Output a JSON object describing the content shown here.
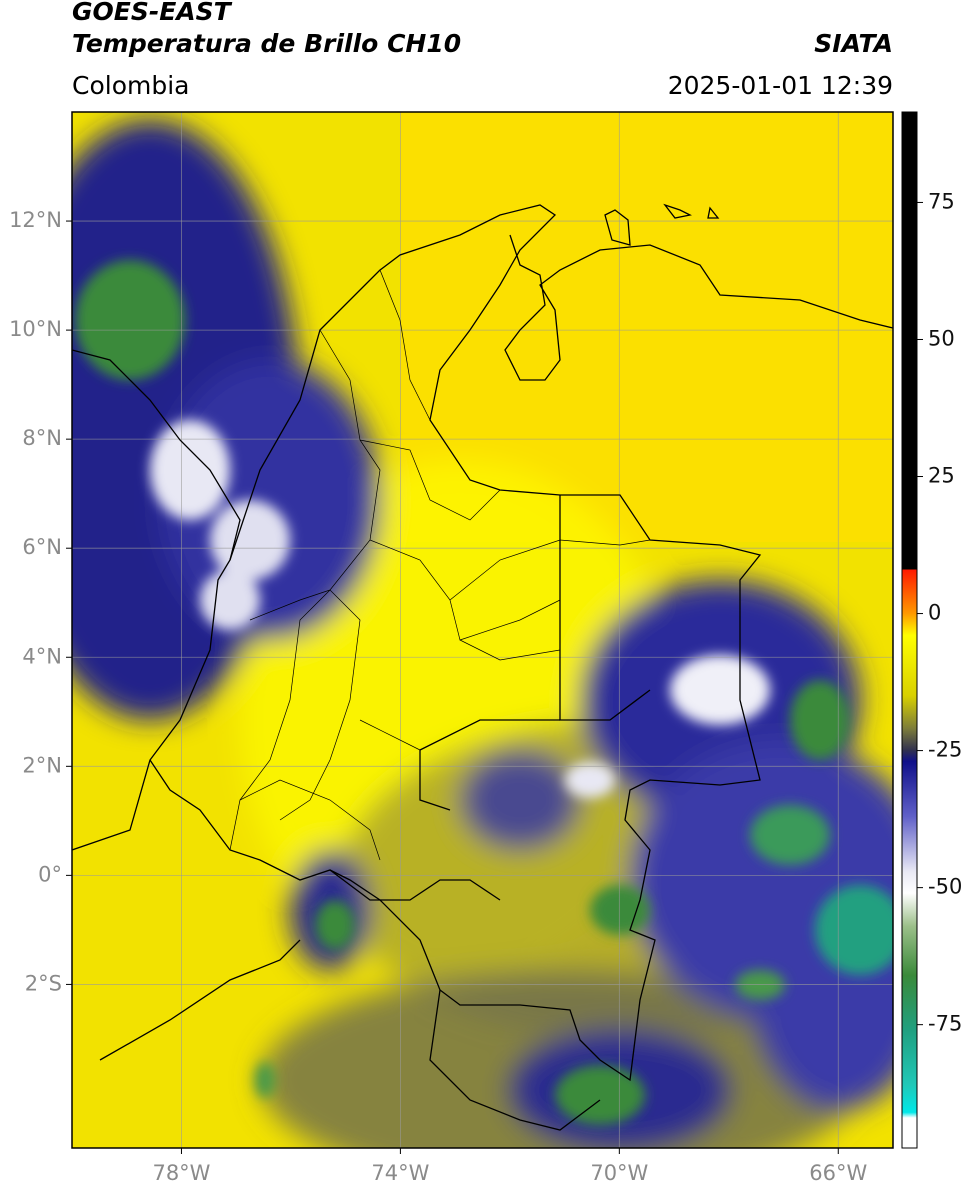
{
  "header": {
    "satellite": "GOES-EAST",
    "product": "Temperatura de Brillo CH10",
    "region": "Colombia",
    "source": "SIATA",
    "datetime": "2025-01-01 12:39"
  },
  "map": {
    "xlim": [
      -80,
      -65
    ],
    "ylim": [
      -5,
      14
    ],
    "xticks": [
      {
        "value": -78,
        "label": "78°W"
      },
      {
        "value": -74,
        "label": "74°W"
      },
      {
        "value": -70,
        "label": "70°W"
      },
      {
        "value": -66,
        "label": "66°W"
      }
    ],
    "yticks": [
      {
        "value": 12,
        "label": "12°N"
      },
      {
        "value": 10,
        "label": "10°N"
      },
      {
        "value": 8,
        "label": "8°N"
      },
      {
        "value": 6,
        "label": "6°N"
      },
      {
        "value": 4,
        "label": "4°N"
      },
      {
        "value": 2,
        "label": "2°N"
      },
      {
        "value": 0,
        "label": "0°"
      },
      {
        "value": -2,
        "label": "2°S"
      }
    ],
    "grid": true
  },
  "colorbar": {
    "lim": [
      -97.5,
      91.5
    ],
    "ticks": [
      75,
      50,
      25,
      0,
      -25,
      -50,
      -75
    ],
    "colors": [
      {
        "value": 91.5,
        "color": "#000000"
      },
      {
        "value": 8,
        "color": "#000000"
      },
      {
        "value": 8,
        "color": "#ff1a00"
      },
      {
        "value": 0,
        "color": "#ff9900"
      },
      {
        "value": -4,
        "color": "#ffff00"
      },
      {
        "value": -15,
        "color": "#d8d000"
      },
      {
        "value": -21,
        "color": "#7c7c3a"
      },
      {
        "value": -25,
        "color": "#303050"
      },
      {
        "value": -27,
        "color": "#10108a"
      },
      {
        "value": -37,
        "color": "#6060c8"
      },
      {
        "value": -47,
        "color": "#e8e8f4"
      },
      {
        "value": -51,
        "color": "#ffffff"
      },
      {
        "value": -57,
        "color": "#9cc08a"
      },
      {
        "value": -66,
        "color": "#3a8a3a"
      },
      {
        "value": -76,
        "color": "#20a080"
      },
      {
        "value": -86,
        "color": "#20c8b8"
      },
      {
        "value": -91,
        "color": "#00e8e8"
      },
      {
        "value": -92,
        "color": "#ffffff"
      },
      {
        "value": -97.5,
        "color": "#ffffff"
      }
    ]
  }
}
